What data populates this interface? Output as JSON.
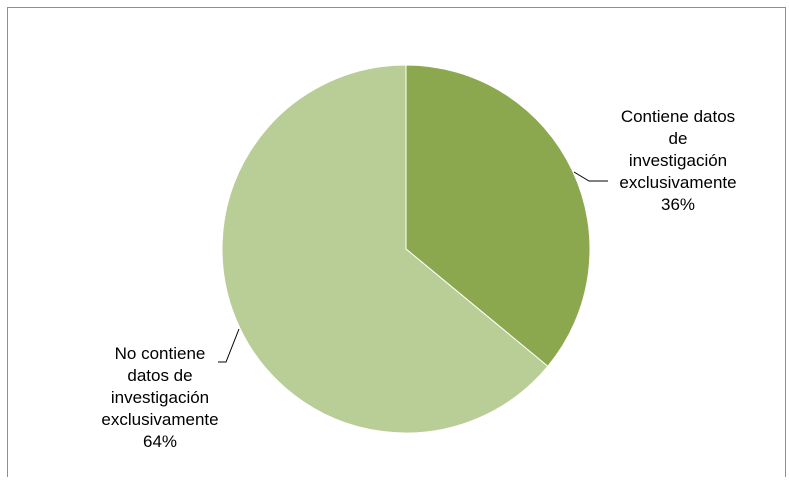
{
  "chart_data": {
    "type": "pie",
    "title": "",
    "series": [
      {
        "values": [
          36,
          64
        ]
      }
    ],
    "slices": [
      {
        "name": "Contiene datos de investigación exclusivamente",
        "label_lines": [
          "Contiene datos",
          "de",
          "investigación",
          "exclusivamente"
        ],
        "value": 36,
        "percent_label": "36%",
        "color": "#8ca84f"
      },
      {
        "name": "No contiene datos de investigación exclusivamente",
        "label_lines": [
          "No contiene",
          "datos de",
          "investigación",
          "exclusivamente"
        ],
        "value": 64,
        "percent_label": "64%",
        "color": "#b9cd96"
      }
    ],
    "legend": "none",
    "grid": false
  }
}
